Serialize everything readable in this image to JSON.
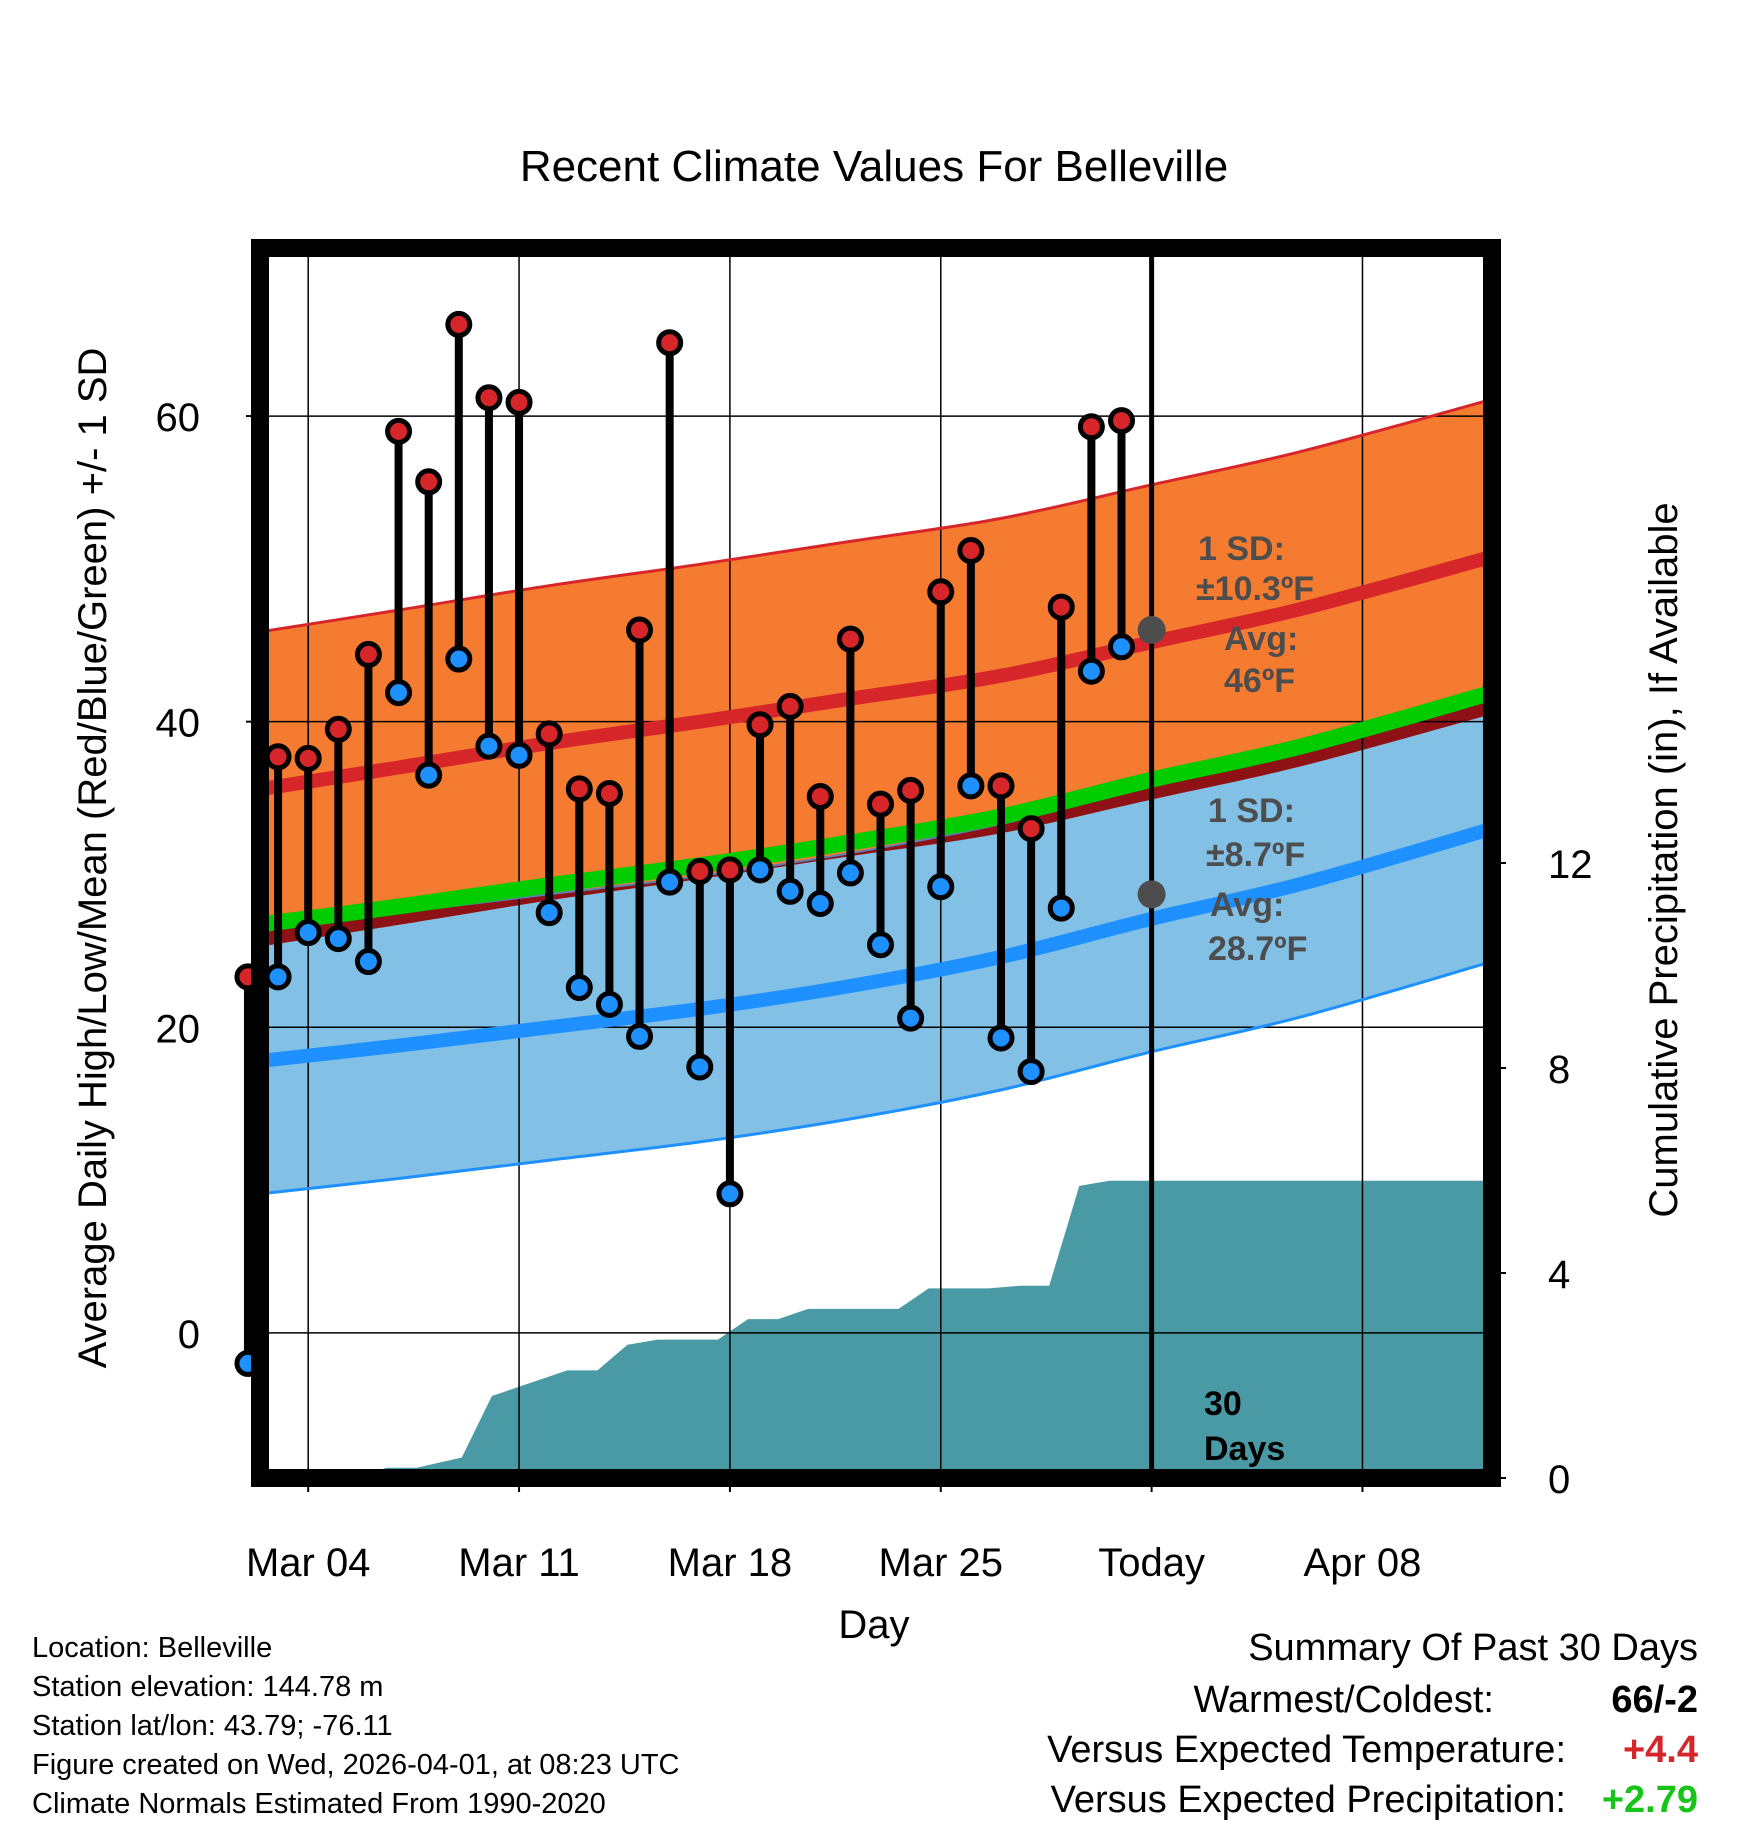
{
  "title": "Recent Climate Values For Belleville",
  "chart_data": {
    "type": "line",
    "title": "Recent Climate Values For Belleville",
    "xlabel": "Day",
    "ylabel": "Average Daily High/Low/Mean (Red/Blue/Green) +/- 1 SD",
    "y2label": "Cumulative Precipitation (in), If Available",
    "ylim": [
      -9.5,
      71
    ],
    "y2lim": [
      0,
      24
    ],
    "xlim": [
      -1.6,
      39.3
    ],
    "x_unit": "days since Mar 04",
    "grid": true,
    "yticks": [
      0,
      20,
      40,
      60
    ],
    "y2ticks": [
      0,
      4,
      8,
      12
    ],
    "xticks": [
      {
        "x": 0,
        "label": "Mar 04"
      },
      {
        "x": 7,
        "label": "Mar 11"
      },
      {
        "x": 14,
        "label": "Mar 18"
      },
      {
        "x": 21,
        "label": "Mar 25"
      },
      {
        "x": 28,
        "label": "Today"
      },
      {
        "x": 35,
        "label": "Apr 08"
      }
    ],
    "today_x": 28,
    "normals_x": [
      -2.5,
      3,
      8,
      13,
      18,
      23,
      28,
      33,
      39.3
    ],
    "normal_high": [
      35.3,
      37.0,
      38.6,
      40.0,
      41.5,
      43.0,
      45.2,
      47.4,
      50.8
    ],
    "normal_high_sd": 10.3,
    "normal_low": [
      17.6,
      18.8,
      20.0,
      21.2,
      22.7,
      24.6,
      27.1,
      29.4,
      33.0
    ],
    "normal_low_sd": 8.7,
    "normal_mean": [
      26.5,
      27.9,
      29.3,
      30.6,
      32.1,
      33.8,
      36.2,
      38.4,
      41.9
    ],
    "observed": {
      "x": [
        -2,
        -1,
        0,
        1,
        2,
        3,
        4,
        5,
        6,
        7,
        8,
        9,
        10,
        11,
        12,
        13,
        14,
        15,
        16,
        17,
        18,
        19,
        20,
        21,
        22,
        23,
        24,
        25,
        26,
        27
      ],
      "high": [
        23.3,
        37.7,
        37.6,
        39.5,
        44.4,
        59.0,
        55.7,
        66.0,
        61.2,
        60.9,
        39.2,
        35.6,
        35.3,
        46.0,
        64.8,
        30.2,
        30.3,
        39.8,
        41.0,
        35.1,
        45.4,
        34.6,
        35.5,
        48.5,
        51.2,
        35.8,
        33.0,
        47.5,
        59.3,
        59.7
      ],
      "low": [
        -2.0,
        23.3,
        26.2,
        25.8,
        24.3,
        41.9,
        36.5,
        44.1,
        38.4,
        37.8,
        27.5,
        22.6,
        21.5,
        19.4,
        29.5,
        17.4,
        9.1,
        30.3,
        28.9,
        28.1,
        30.1,
        25.4,
        20.6,
        29.2,
        35.8,
        19.3,
        17.1,
        27.8,
        43.3,
        44.9
      ]
    },
    "precip_x": [
      -2.6,
      1.6,
      2.6,
      3.6,
      5.1,
      6.1,
      6.6,
      7.6,
      8.6,
      9.6,
      10.6,
      11.6,
      12.6,
      13.6,
      14.6,
      15.6,
      16.6,
      17.6,
      18.6,
      19.6,
      20.6,
      21.6,
      22.6,
      23.6,
      24.6,
      25.6,
      26.6,
      39.3
    ],
    "precip": [
      0,
      0,
      0.2,
      0.2,
      0.4,
      1.6,
      1.7,
      1.9,
      2.1,
      2.1,
      2.6,
      2.7,
      2.7,
      2.7,
      3.1,
      3.1,
      3.3,
      3.3,
      3.3,
      3.3,
      3.7,
      3.7,
      3.7,
      3.75,
      3.75,
      5.7,
      5.8,
      5.8
    ],
    "annotations": {
      "high_sd_label": "1 SD:",
      "high_sd_value": "±10.3ºF",
      "high_avg_label": "Avg:",
      "high_avg_value": "46ºF",
      "high_avg": 46,
      "low_sd_label": "1 SD:",
      "low_sd_value": "±8.7ºF",
      "low_avg_label": "Avg:",
      "low_avg_value": "28.7ºF",
      "low_avg": 28.7,
      "days_number": "30",
      "days_word": "Days"
    },
    "colors": {
      "high_band": "#f47b30",
      "high_line": "#d7262a",
      "low_band": "#82c0e5",
      "low_line": "#1e90ff",
      "overlap_band": "#8e1116",
      "mean_line": "#00cc00",
      "precip": "#4a9aa5",
      "high_dot": "#d7262a",
      "low_dot": "#1e90ff",
      "annotation": "#4d4d4d"
    }
  },
  "footer": {
    "location": "Location: Belleville",
    "elevation": "Station elevation: 144.78 m",
    "latlon": "Station lat/lon: 43.79; -76.11",
    "created": "Figure created on Wed, 2026-04-01, at 08:23 UTC",
    "normals": "Climate Normals Estimated From 1990-2020"
  },
  "summary": {
    "heading": "Summary Of Past 30 Days",
    "warmest_label": "Warmest/Coldest:",
    "warmest_value": "66/-2",
    "temp_label": "Versus Expected Temperature:",
    "temp_value": "+4.4",
    "temp_color": "#d7262a",
    "precip_label": "Versus Expected Precipitation:",
    "precip_value": "+2.79",
    "precip_color": "#19c419"
  }
}
